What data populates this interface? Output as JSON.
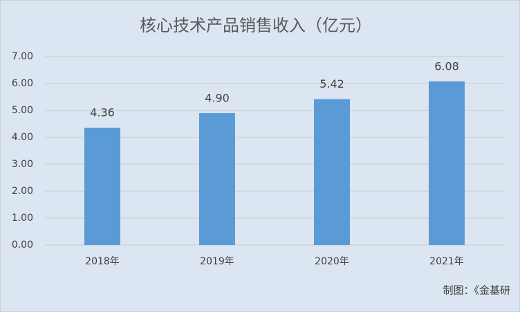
{
  "chart_data": {
    "type": "bar",
    "title": "核心技术产品销售收入（亿元）",
    "categories": [
      "2018年",
      "2019年",
      "2020年",
      "2021年"
    ],
    "values": [
      4.36,
      4.9,
      5.42,
      6.08
    ],
    "value_labels": [
      "4.36",
      "4.90",
      "5.42",
      "6.08"
    ],
    "color": "#5b9bd5",
    "ylim": [
      0,
      7
    ],
    "yticks": [
      {
        "value": 0,
        "label": "0.00"
      },
      {
        "value": 1,
        "label": "1.00"
      },
      {
        "value": 2,
        "label": "2.00"
      },
      {
        "value": 3,
        "label": "3.00"
      },
      {
        "value": 4,
        "label": "4.00"
      },
      {
        "value": 5,
        "label": "5.00"
      },
      {
        "value": 6,
        "label": "6.00"
      },
      {
        "value": 7,
        "label": "7.00"
      }
    ],
    "grid": true,
    "source": "制图：《金基研"
  }
}
